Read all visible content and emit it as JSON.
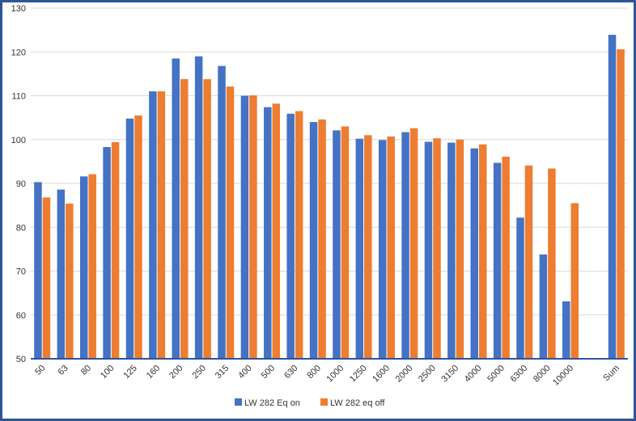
{
  "chart_data": {
    "type": "bar",
    "title": "",
    "xlabel": "",
    "ylabel": "",
    "ylim": [
      50,
      130
    ],
    "yticks": [
      50,
      60,
      70,
      80,
      90,
      100,
      110,
      120,
      130
    ],
    "grid": true,
    "legend_position": "bottom",
    "categories": [
      "50",
      "63",
      "80",
      "100",
      "125",
      "160",
      "200",
      "250",
      "315",
      "400",
      "500",
      "630",
      "800",
      "1000",
      "1250",
      "1600",
      "2000",
      "2500",
      "3150",
      "4000",
      "5000",
      "6300",
      "8000",
      "10000",
      "",
      "Sum"
    ],
    "series": [
      {
        "name": "LW 282 Eq on",
        "color": "#4472C4",
        "values": [
          90.3,
          88.6,
          91.6,
          98.3,
          104.8,
          111.0,
          118.5,
          119.0,
          116.8,
          110.0,
          107.4,
          105.9,
          104.0,
          102.1,
          100.2,
          99.9,
          101.7,
          99.5,
          99.3,
          98.0,
          94.7,
          82.2,
          73.8,
          63.1,
          null,
          123.9
        ]
      },
      {
        "name": "LW 282 eq off",
        "color": "#ED7D31",
        "values": [
          86.8,
          85.4,
          92.1,
          99.4,
          105.5,
          111.0,
          113.8,
          113.8,
          112.1,
          110.1,
          108.2,
          106.5,
          104.6,
          103.0,
          101.0,
          100.7,
          102.6,
          100.3,
          100.0,
          98.9,
          96.1,
          94.1,
          93.4,
          85.5,
          null,
          120.6
        ]
      }
    ]
  }
}
